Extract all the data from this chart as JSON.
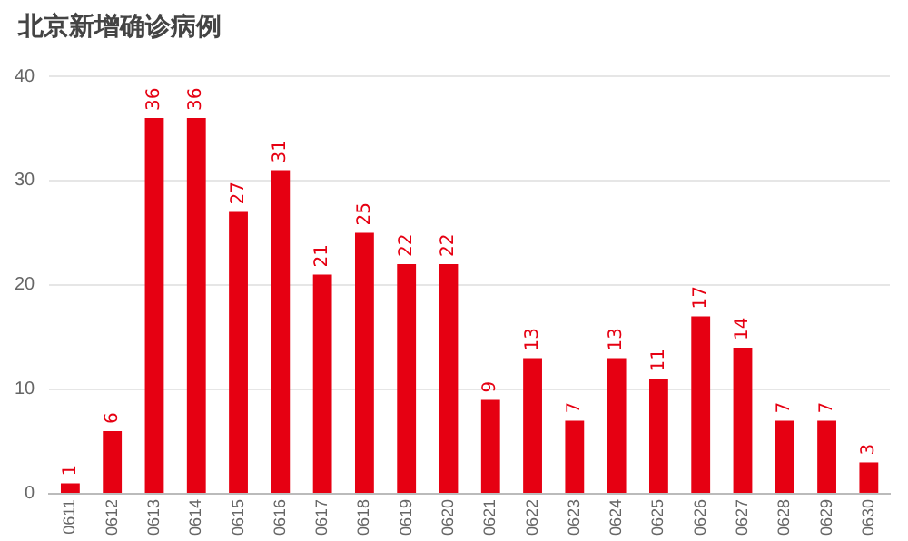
{
  "chart_data": {
    "type": "bar",
    "title": "北京新增确诊病例",
    "categories": [
      "0611",
      "0612",
      "0613",
      "0614",
      "0615",
      "0616",
      "0617",
      "0618",
      "0619",
      "0620",
      "0621",
      "0622",
      "0623",
      "0624",
      "0625",
      "0626",
      "0627",
      "0628",
      "0629",
      "0630"
    ],
    "values": [
      1,
      6,
      36,
      36,
      27,
      31,
      21,
      25,
      22,
      22,
      9,
      13,
      7,
      13,
      11,
      17,
      14,
      7,
      7,
      3
    ],
    "color": "#e60012",
    "ylim": [
      0,
      40
    ],
    "yticks": [
      0,
      10,
      20,
      30,
      40
    ],
    "grid": "y",
    "data_labels": true
  }
}
